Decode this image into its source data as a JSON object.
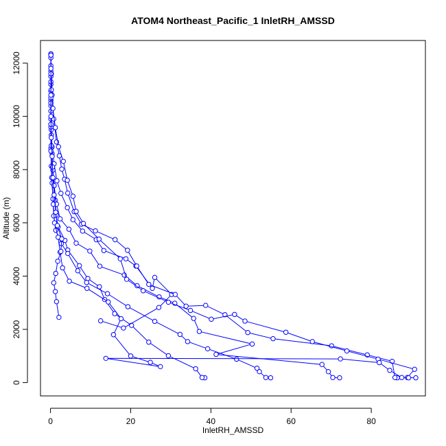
{
  "chart_data": {
    "type": "line",
    "title": "ATOM4 Northeast_Pacific_1 InletRH_AMSSD",
    "xlabel": "InletRH_AMSSD",
    "ylabel": "Altitude (m)",
    "xlim": [
      -2.5,
      93.5
    ],
    "ylim": [
      -500,
      12850
    ],
    "xticks": [
      0,
      20,
      40,
      60,
      80
    ],
    "yticks": [
      0,
      2000,
      4000,
      6000,
      8000,
      10000,
      12000
    ],
    "grid": false,
    "legend": "none",
    "colors": {
      "series": "#0000ff",
      "axes": "#000000"
    },
    "series": [
      {
        "values": [
          [
            38.5,
            180
          ],
          [
            37.8,
            190
          ],
          [
            36.2,
            520
          ],
          [
            29.4,
            1010
          ],
          [
            24.5,
            1520
          ],
          [
            20.2,
            2150
          ],
          [
            16.0,
            2590
          ],
          [
            13.5,
            3120
          ],
          [
            12.2,
            3600
          ],
          [
            9.3,
            3910
          ],
          [
            7.2,
            4390
          ],
          [
            4.3,
            4980
          ],
          [
            3.6,
            5340
          ],
          [
            1.9,
            5850
          ],
          [
            1.4,
            6290
          ],
          [
            1.2,
            6850
          ],
          [
            0.9,
            7400
          ],
          [
            0.6,
            7980
          ],
          [
            0.4,
            8600
          ],
          [
            0.2,
            9300
          ],
          [
            0.1,
            9900
          ],
          [
            0.1,
            10600
          ],
          [
            0.1,
            11200
          ],
          [
            0.1,
            11900
          ],
          [
            0.1,
            12350
          ]
        ]
      },
      {
        "values": [
          [
            12.5,
            2320
          ],
          [
            18.2,
            2050
          ],
          [
            27.0,
            2820
          ],
          [
            30.2,
            3310
          ],
          [
            26.0,
            3950
          ],
          [
            25.4,
            3540
          ],
          [
            21.3,
            4380
          ],
          [
            18.8,
            4650
          ],
          [
            13.3,
            4960
          ],
          [
            11.4,
            5370
          ],
          [
            8.0,
            5690
          ],
          [
            5.6,
            6120
          ],
          [
            4.2,
            6570
          ],
          [
            2.6,
            7110
          ],
          [
            1.6,
            7580
          ],
          [
            0.9,
            8220
          ],
          [
            0.4,
            8850
          ],
          [
            0.2,
            9500
          ],
          [
            0.1,
            10200
          ],
          [
            0.1,
            10950
          ],
          [
            0.1,
            11700
          ],
          [
            0.1,
            12300
          ]
        ]
      },
      {
        "values": [
          [
            54.9,
            180
          ],
          [
            53.7,
            190
          ],
          [
            52.1,
            410
          ],
          [
            51.5,
            540
          ],
          [
            46.4,
            880
          ],
          [
            39.2,
            1270
          ],
          [
            34.2,
            1540
          ],
          [
            32.3,
            1810
          ],
          [
            26.0,
            2300
          ],
          [
            19.3,
            2850
          ],
          [
            14.2,
            3340
          ],
          [
            9.0,
            3760
          ],
          [
            6.8,
            4200
          ],
          [
            4.3,
            4850
          ],
          [
            2.7,
            5220
          ],
          [
            1.3,
            5720
          ],
          [
            0.8,
            6260
          ],
          [
            0.6,
            6900
          ],
          [
            0.4,
            7500
          ],
          [
            0.2,
            8130
          ],
          [
            0.1,
            8800
          ],
          [
            0.1,
            9600
          ],
          [
            0.1,
            10400
          ],
          [
            0.1,
            11300
          ],
          [
            0.1,
            12200
          ]
        ]
      },
      {
        "values": [
          [
            72.1,
            180
          ],
          [
            70.4,
            190
          ],
          [
            69.3,
            410
          ],
          [
            67.7,
            680
          ],
          [
            41.3,
            1060
          ],
          [
            50.3,
            1450
          ],
          [
            37.1,
            1920
          ],
          [
            35.7,
            2410
          ],
          [
            31.0,
            2980
          ],
          [
            27.1,
            3220
          ],
          [
            21.6,
            3640
          ],
          [
            18.4,
            4040
          ],
          [
            12.3,
            4370
          ],
          [
            9.8,
            4940
          ],
          [
            6.4,
            5240
          ],
          [
            4.6,
            5760
          ],
          [
            2.4,
            6150
          ],
          [
            1.5,
            6700
          ],
          [
            0.9,
            7400
          ],
          [
            0.5,
            8100
          ],
          [
            0.2,
            8900
          ],
          [
            0.1,
            9700
          ],
          [
            0.1,
            10500
          ],
          [
            0.1,
            11500
          ]
        ]
      },
      {
        "values": [
          [
            86.5,
            180
          ],
          [
            85.9,
            190
          ],
          [
            85.2,
            800
          ],
          [
            79.0,
            1040
          ],
          [
            70.1,
            1380
          ],
          [
            55.5,
            1650
          ],
          [
            49.2,
            1880
          ],
          [
            43.5,
            2550
          ],
          [
            38.7,
            2900
          ],
          [
            33.8,
            2870
          ],
          [
            31.1,
            3310
          ],
          [
            24.5,
            3690
          ],
          [
            21.5,
            4380
          ],
          [
            19.2,
            4970
          ],
          [
            16.1,
            5370
          ],
          [
            11.2,
            5700
          ],
          [
            7.7,
            5950
          ],
          [
            5.9,
            6420
          ],
          [
            4.3,
            7120
          ],
          [
            3.5,
            7640
          ],
          [
            2.8,
            8020
          ],
          [
            2.2,
            8520
          ],
          [
            1.5,
            9040
          ],
          [
            0.8,
            9900
          ],
          [
            0.4,
            10800
          ],
          [
            0.2,
            11600
          ]
        ]
      },
      {
        "values": [
          [
            91.1,
            180
          ],
          [
            89.0,
            190
          ],
          [
            90.8,
            500
          ],
          [
            81.7,
            880
          ],
          [
            73.9,
            1190
          ],
          [
            65.3,
            1540
          ],
          [
            58.7,
            1890
          ],
          [
            48.5,
            2310
          ],
          [
            45.9,
            2560
          ],
          [
            40.1,
            2380
          ],
          [
            34.9,
            2710
          ],
          [
            29.4,
            3020
          ],
          [
            23.1,
            3450
          ],
          [
            19.0,
            3880
          ],
          [
            17.4,
            4650
          ],
          [
            12.1,
            5390
          ],
          [
            8.2,
            5980
          ],
          [
            6.4,
            6430
          ],
          [
            5.6,
            7000
          ],
          [
            4.2,
            7600
          ],
          [
            3.2,
            8310
          ],
          [
            2.0,
            8860
          ],
          [
            1.2,
            9580
          ],
          [
            0.6,
            10300
          ],
          [
            0.2,
            11000
          ]
        ]
      },
      {
        "values": [
          [
            89.3,
            180
          ],
          [
            87.6,
            190
          ],
          [
            84.6,
            460
          ],
          [
            82.0,
            750
          ],
          [
            72.3,
            890
          ],
          [
            13.8,
            910
          ],
          [
            27.4,
            600
          ],
          [
            24.9,
            760
          ],
          [
            20.0,
            1000
          ],
          [
            15.7,
            1800
          ],
          [
            17.6,
            2400
          ],
          [
            14.4,
            3030
          ],
          [
            9.1,
            3540
          ],
          [
            4.7,
            3810
          ],
          [
            3.0,
            4310
          ],
          [
            2.4,
            4900
          ],
          [
            1.9,
            5460
          ],
          [
            1.0,
            6000
          ],
          [
            0.7,
            6700
          ],
          [
            0.3,
            7700
          ],
          [
            0.1,
            8700
          ],
          [
            0.1,
            9700
          ],
          [
            0.1,
            10700
          ],
          [
            0.1,
            11600
          ],
          [
            0.1,
            12300
          ]
        ]
      },
      {
        "values": [
          [
            2.1,
            2450
          ],
          [
            1.5,
            3040
          ],
          [
            1.2,
            3420
          ],
          [
            0.8,
            3750
          ],
          [
            1.3,
            4100
          ],
          [
            1.8,
            4560
          ],
          [
            2.6,
            4930
          ],
          [
            2.8,
            5400
          ],
          [
            1.7,
            5900
          ],
          [
            1.3,
            6400
          ],
          [
            0.9,
            7050
          ],
          [
            0.6,
            7700
          ],
          [
            0.4,
            8500
          ],
          [
            0.2,
            9200
          ],
          [
            0.1,
            10000
          ],
          [
            0.1,
            10800
          ],
          [
            0.1,
            11800
          ]
        ]
      }
    ]
  }
}
